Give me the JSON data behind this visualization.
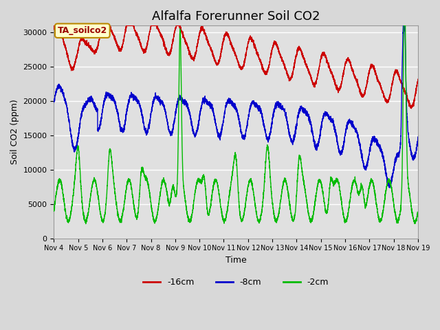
{
  "title": "Alfalfa Forerunner Soil CO2",
  "ylabel": "Soil CO2 (ppm)",
  "xlabel": "Time",
  "annotation": "TA_soilco2",
  "ylim": [
    0,
    31000
  ],
  "legend_labels": [
    "-16cm",
    "-8cm",
    "-2cm"
  ],
  "line_colors": [
    "#cc0000",
    "#0000cc",
    "#00bb00"
  ],
  "x_tick_labels": [
    "Nov 4",
    "Nov 5",
    "Nov 6",
    "Nov 7",
    "Nov 8",
    "Nov 9",
    "Nov 10",
    "Nov 11",
    "Nov 12",
    "Nov 13",
    "Nov 14",
    "Nov 15",
    "Nov 16",
    "Nov 17",
    "Nov 18",
    "Nov 19"
  ],
  "background_color": "#d8d8d8",
  "title_fontsize": 13,
  "axis_fontsize": 9,
  "tick_fontsize": 8
}
